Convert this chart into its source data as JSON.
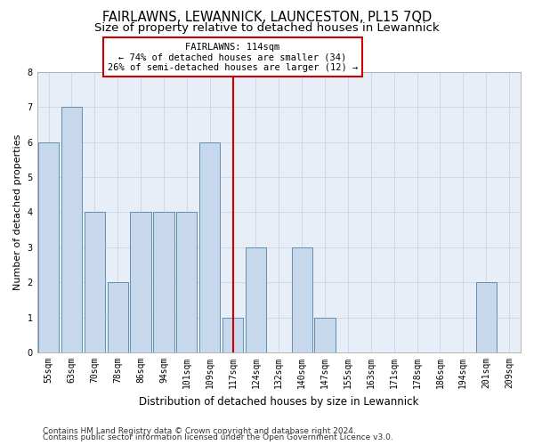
{
  "title": "FAIRLAWNS, LEWANNICK, LAUNCESTON, PL15 7QD",
  "subtitle": "Size of property relative to detached houses in Lewannick",
  "xlabel": "Distribution of detached houses by size in Lewannick",
  "ylabel": "Number of detached properties",
  "categories": [
    "55sqm",
    "63sqm",
    "70sqm",
    "78sqm",
    "86sqm",
    "94sqm",
    "101sqm",
    "109sqm",
    "117sqm",
    "124sqm",
    "132sqm",
    "140sqm",
    "147sqm",
    "155sqm",
    "163sqm",
    "171sqm",
    "178sqm",
    "186sqm",
    "194sqm",
    "201sqm",
    "209sqm"
  ],
  "bar_heights": [
    6,
    7,
    4,
    2,
    4,
    4,
    4,
    6,
    1,
    3,
    0,
    3,
    1,
    0,
    0,
    0,
    0,
    0,
    0,
    2,
    0
  ],
  "bar_color": "#c8d8ec",
  "bar_edgecolor": "#6090b0",
  "grid_color": "#d0d8e8",
  "background_color": "#e8eef8",
  "annotation_box_text": "FAIRLAWNS: 114sqm\n← 74% of detached houses are smaller (34)\n26% of semi-detached houses are larger (12) →",
  "annotation_box_color": "#cc0000",
  "redline_index": 8,
  "ylim": [
    0,
    8
  ],
  "yticks": [
    0,
    1,
    2,
    3,
    4,
    5,
    6,
    7,
    8
  ],
  "footer_line1": "Contains HM Land Registry data © Crown copyright and database right 2024.",
  "footer_line2": "Contains public sector information licensed under the Open Government Licence v3.0.",
  "title_fontsize": 10.5,
  "subtitle_fontsize": 9.5,
  "xlabel_fontsize": 8.5,
  "ylabel_fontsize": 8,
  "tick_fontsize": 7,
  "footer_fontsize": 6.5
}
